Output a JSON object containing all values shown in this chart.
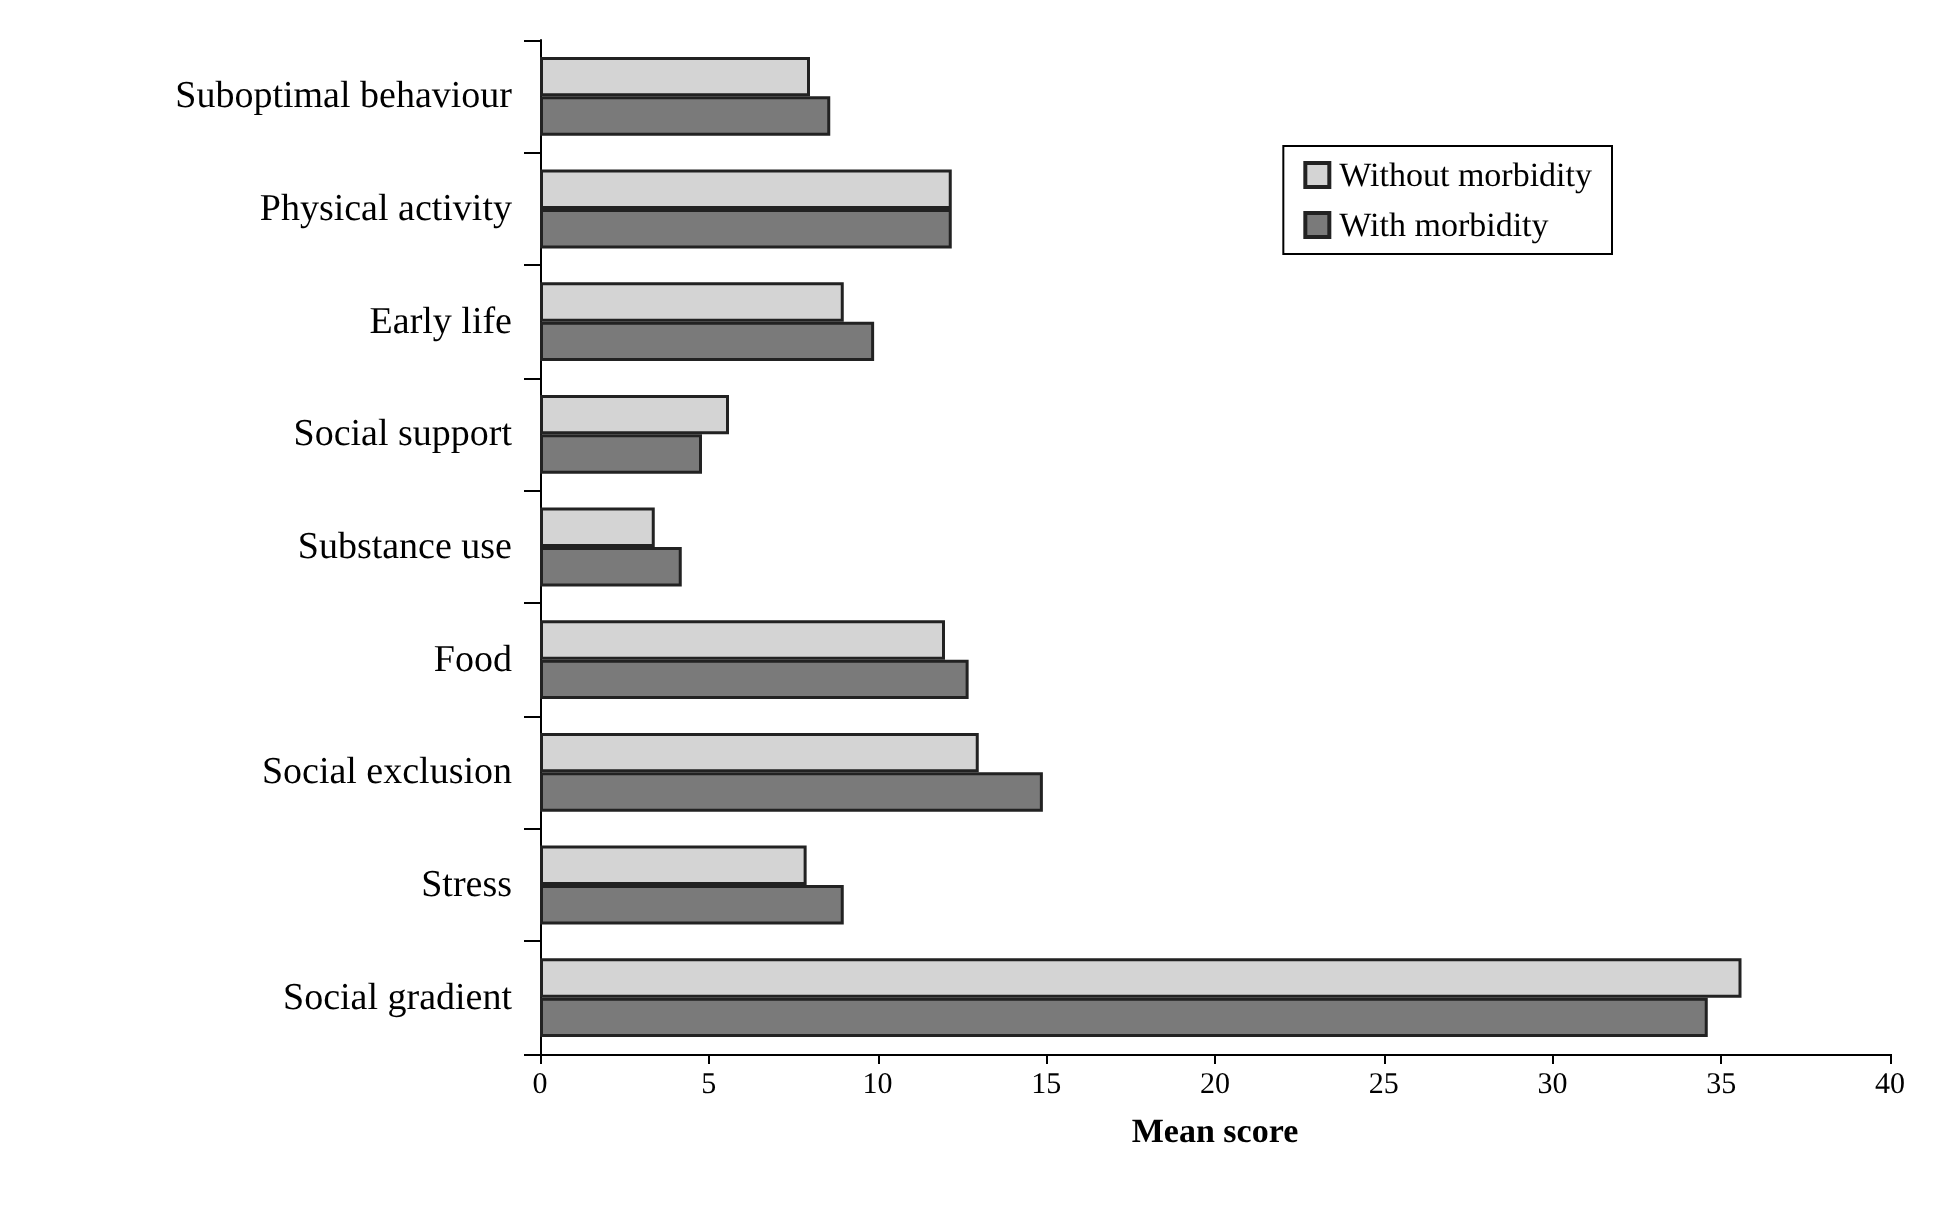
{
  "chart_data": {
    "type": "bar",
    "orientation": "horizontal",
    "xlabel": "Mean score",
    "categories": [
      "Suboptimal behaviour",
      "Physical activity",
      "Early life",
      "Social support",
      "Substance use",
      "Food",
      "Social exclusion",
      "Stress",
      "Social gradient"
    ],
    "series": [
      {
        "name": "Without morbidity",
        "color": "#d4d4d4",
        "values": [
          8.0,
          12.2,
          9.0,
          5.6,
          3.4,
          12.0,
          13.0,
          7.9,
          35.6
        ]
      },
      {
        "name": "With morbidity",
        "color": "#7a7a7a",
        "values": [
          8.6,
          12.2,
          9.9,
          4.8,
          4.2,
          12.7,
          14.9,
          9.0,
          34.6
        ]
      }
    ],
    "xlim": [
      0,
      40
    ],
    "xticks": [
      0,
      5,
      10,
      15,
      20,
      25,
      30,
      35,
      40
    ],
    "grid": false,
    "legend": "top right"
  }
}
